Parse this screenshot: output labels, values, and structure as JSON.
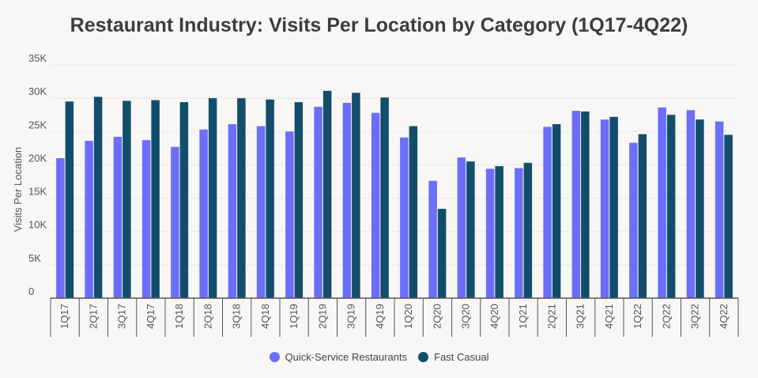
{
  "chart_data": {
    "type": "bar",
    "title": "Restaurant Industry: Visits Per Location by Category (1Q17-4Q22)",
    "xlabel": "",
    "ylabel": "Visits Per Location",
    "ylim": [
      0,
      35000
    ],
    "yticks": [
      {
        "value": 0,
        "label": "0"
      },
      {
        "value": 5000,
        "label": "5K"
      },
      {
        "value": 10000,
        "label": "10K"
      },
      {
        "value": 15000,
        "label": "15K"
      },
      {
        "value": 20000,
        "label": "20K"
      },
      {
        "value": 25000,
        "label": "25K"
      },
      {
        "value": 30000,
        "label": "30K"
      },
      {
        "value": 35000,
        "label": "35K"
      }
    ],
    "grid": true,
    "legend_position": "bottom",
    "categories": [
      "1Q17",
      "2Q17",
      "3Q17",
      "4Q17",
      "1Q18",
      "2Q18",
      "3Q18",
      "4Q18",
      "1Q19",
      "2Q19",
      "3Q19",
      "4Q19",
      "1Q20",
      "2Q20",
      "3Q20",
      "4Q20",
      "1Q21",
      "2Q21",
      "3Q21",
      "4Q21",
      "1Q22",
      "2Q22",
      "3Q22",
      "4Q22"
    ],
    "series": [
      {
        "name": "Quick-Service Restaurants",
        "color": "#6b6ef9",
        "values": [
          21000,
          23600,
          24200,
          23700,
          22700,
          25300,
          26100,
          25800,
          25000,
          28700,
          29300,
          27800,
          24100,
          17600,
          21100,
          19400,
          19500,
          25700,
          28100,
          26800,
          23300,
          28600,
          28200,
          26500
        ]
      },
      {
        "name": "Fast Casual",
        "color": "#124e6b",
        "values": [
          29500,
          30200,
          29600,
          29700,
          29400,
          30000,
          30000,
          29800,
          29400,
          31100,
          30800,
          30100,
          25800,
          13400,
          20500,
          19800,
          20300,
          26100,
          28000,
          27200,
          24600,
          27500,
          26800,
          24500
        ]
      }
    ]
  }
}
